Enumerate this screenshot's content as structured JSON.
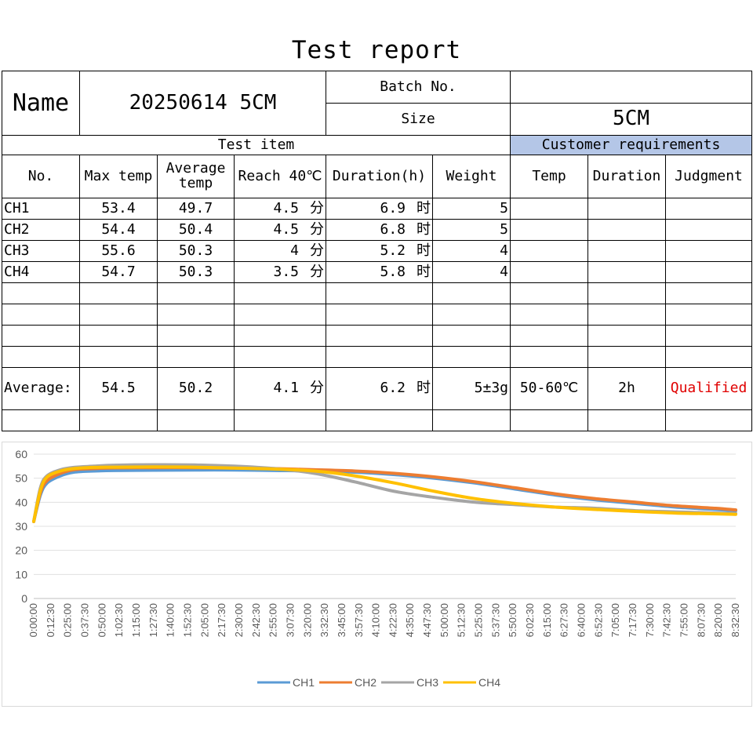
{
  "title": "Test report",
  "header": {
    "name_label": "Name",
    "name_value": "20250614 5CM",
    "batch_label": "Batch No.",
    "batch_value": "",
    "size_label": "Size",
    "size_value": "5CM"
  },
  "sections": {
    "test_item": "Test item",
    "customer_requirements": "Customer requirements"
  },
  "columns": [
    "No.",
    "Max temp",
    "Average temp",
    "Reach 40℃",
    "Duration(h)",
    "Weight",
    "Temp",
    "Duration",
    "Judgment"
  ],
  "rows": [
    {
      "no": "CH1",
      "max": "53.4",
      "avg": "49.7",
      "reach": "4.5",
      "reach_unit": "分",
      "dur": "6.9",
      "dur_unit": "时",
      "weight": "5"
    },
    {
      "no": "CH2",
      "max": "54.4",
      "avg": "50.4",
      "reach": "4.5",
      "reach_unit": "分",
      "dur": "6.8",
      "dur_unit": "时",
      "weight": "5"
    },
    {
      "no": "CH3",
      "max": "55.6",
      "avg": "50.3",
      "reach": "4",
      "reach_unit": "分",
      "dur": "5.2",
      "dur_unit": "时",
      "weight": "4"
    },
    {
      "no": "CH4",
      "max": "54.7",
      "avg": "50.3",
      "reach": "3.5",
      "reach_unit": "分",
      "dur": "5.8",
      "dur_unit": "时",
      "weight": "4"
    }
  ],
  "average_row": {
    "label": "Average:",
    "max": "54.5",
    "avg": "50.2",
    "reach": "4.1",
    "reach_unit": "分",
    "dur": "6.2",
    "dur_unit": "时",
    "weight": "5±3g",
    "temp": "50-60℃",
    "duration": "2h",
    "judgment": "Qualified"
  },
  "colors": {
    "header_fill": "#b4c6e7",
    "qualified": "#e00000",
    "CH1": "#5b9bd5",
    "CH2": "#ed7d31",
    "CH3": "#a5a5a5",
    "CH4": "#ffc000"
  },
  "chart_data": {
    "type": "line",
    "ylim": [
      0,
      60
    ],
    "yticks": [
      0,
      10,
      20,
      30,
      40,
      50,
      60
    ],
    "x_tick_labels": [
      "0:00:00",
      "0:12:30",
      "0:25:00",
      "0:37:30",
      "0:50:00",
      "1:02:30",
      "1:15:00",
      "1:27:30",
      "1:40:00",
      "1:52:30",
      "2:05:00",
      "2:17:30",
      "2:30:00",
      "2:42:30",
      "2:55:00",
      "3:07:30",
      "3:20:00",
      "3:32:30",
      "3:45:00",
      "3:57:30",
      "4:10:00",
      "4:22:30",
      "4:35:00",
      "4:47:30",
      "5:00:00",
      "5:12:30",
      "5:25:00",
      "5:37:30",
      "5:50:00",
      "6:02:30",
      "6:15:00",
      "6:27:30",
      "6:40:00",
      "6:52:30",
      "7:05:00",
      "7:17:30",
      "7:30:00",
      "7:42:30",
      "7:55:00",
      "8:07:30",
      "8:20:00",
      "8:32:30"
    ],
    "x_unit_minutes": [
      0,
      5,
      10,
      20,
      30,
      45,
      60,
      90,
      120,
      150,
      180,
      210,
      240,
      270,
      300,
      330,
      360,
      390,
      420,
      450,
      480,
      510,
      525
    ],
    "series": [
      {
        "name": "CH1",
        "values": [
          32,
          43,
          48,
          51,
          52.5,
          53,
          53.2,
          53.3,
          53.4,
          53.4,
          53.2,
          53,
          52.5,
          51.5,
          50,
          48,
          45.5,
          43,
          41,
          39.5,
          38,
          37,
          36.5
        ]
      },
      {
        "name": "CH2",
        "values": [
          32,
          44,
          49,
          52,
          53.5,
          54,
          54.3,
          54.4,
          54.4,
          54.2,
          54,
          53.5,
          53,
          52,
          50.5,
          48.5,
          46,
          43.5,
          41.5,
          40,
          38.5,
          37.5,
          36.8
        ]
      },
      {
        "name": "CH3",
        "values": [
          32,
          46,
          51,
          53.5,
          54.5,
          55,
          55.4,
          55.6,
          55.5,
          55,
          54,
          52,
          48.5,
          44.5,
          42,
          40,
          39,
          38,
          37.5,
          36.5,
          36,
          35.5,
          35.3
        ]
      },
      {
        "name": "CH4",
        "values": [
          32,
          45,
          50.5,
          53,
          54,
          54.5,
          54.6,
          54.7,
          54.6,
          54.2,
          53.8,
          53,
          51,
          48,
          44.5,
          41.5,
          39.5,
          38,
          37,
          36.2,
          35.5,
          35.2,
          35
        ]
      }
    ]
  }
}
